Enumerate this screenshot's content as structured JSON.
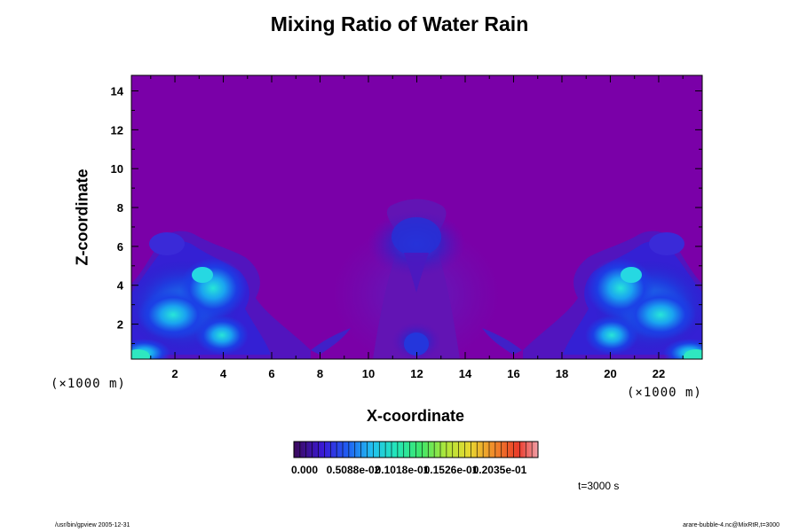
{
  "chart_data": {
    "type": "heatmap",
    "title": "Mixing Ratio of Water Rain",
    "xlabel": "X-coordinate",
    "ylabel": "Z-coordinate",
    "x_unit": "(×1000 m)",
    "y_unit": "(×1000 m)",
    "xlim": [
      0.2,
      23.8
    ],
    "ylim": [
      0.2,
      14.8
    ],
    "x_ticks": [
      2,
      4,
      6,
      8,
      10,
      12,
      14,
      16,
      18,
      20,
      22
    ],
    "y_ticks": [
      2,
      4,
      6,
      8,
      10,
      12,
      14
    ],
    "colorbar": {
      "colormap": "rainbow",
      "labels": [
        "0.000",
        "0.5088e-02",
        "0.1018e-01",
        "0.1526e-01",
        "0.2035e-01"
      ],
      "label_positions": [
        0.0,
        0.2,
        0.4,
        0.6,
        0.8
      ],
      "levels": 40
    },
    "features": [
      {
        "x": 1.5,
        "z": 2.8,
        "level": 0.45
      },
      {
        "x": 3.4,
        "z": 3.6,
        "level": 0.4
      },
      {
        "x": 3.8,
        "z": 1.5,
        "level": 0.38
      },
      {
        "x": 0.2,
        "z": 0.3,
        "level": 0.5
      },
      {
        "x": 12.0,
        "z": 6.2,
        "level": 0.18
      },
      {
        "x": 12.0,
        "z": 1.0,
        "level": 0.14
      },
      {
        "x": 22.5,
        "z": 2.8,
        "level": 0.45
      },
      {
        "x": 20.6,
        "z": 3.6,
        "level": 0.4
      },
      {
        "x": 20.2,
        "z": 1.5,
        "level": 0.38
      },
      {
        "x": 23.8,
        "z": 0.3,
        "level": 0.5
      }
    ]
  },
  "time_label": "t=3000 s",
  "footer_left": "/usr/bin/gpview 2005-12-31",
  "footer_right": "arare-bubble-4.nc@MixRtR,t=3000",
  "colors": {
    "background_field": "#7a00a8",
    "frame": "#000000"
  }
}
